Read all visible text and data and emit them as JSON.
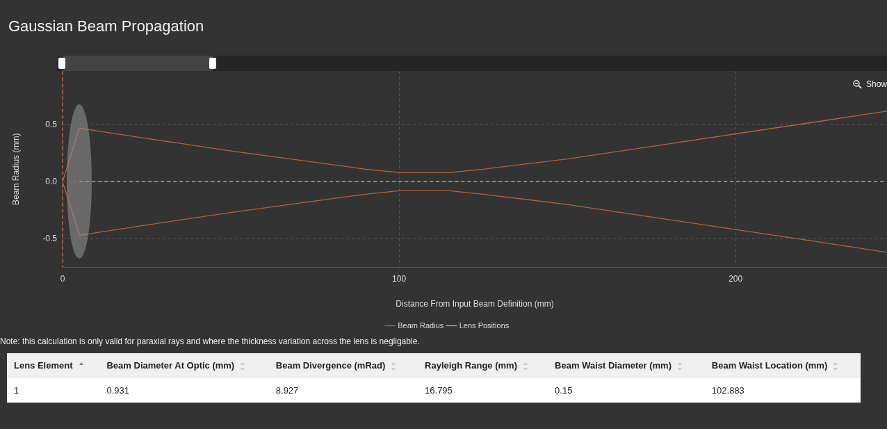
{
  "chart_data": {
    "type": "line",
    "title": "Gaussian Beam Propagation",
    "xlabel": "Distance From Input Beam Definition (mm)",
    "ylabel": "Beam Radius (mm)",
    "xlim": [
      0,
      245
    ],
    "xticks": [
      0,
      100,
      200
    ],
    "ylim": [
      -0.75,
      0.97
    ],
    "yticks": [
      {
        "value": -0.5,
        "label": "-0.5"
      },
      {
        "value": 0,
        "label": "0.0"
      },
      {
        "value": 0.5,
        "label": "0.5"
      }
    ],
    "grid": true,
    "legend": "bottom",
    "marker": "none",
    "series": [
      {
        "name": "Beam Radius",
        "color": "#b8613c",
        "x": [
          0,
          5,
          25,
          50,
          75,
          90,
          100,
          108,
          115,
          125,
          150,
          175,
          200,
          225,
          245
        ],
        "values": [
          0,
          0.47,
          0.38,
          0.27,
          0.17,
          0.11,
          0.08,
          0.08,
          0.08,
          0.11,
          0.2,
          0.31,
          0.42,
          0.53,
          0.62
        ]
      },
      {
        "color": "#b8613c",
        "x": [
          0,
          5,
          25,
          50,
          75,
          90,
          100,
          108,
          115,
          125,
          150,
          175,
          200,
          225,
          245
        ],
        "values": [
          0,
          -0.47,
          -0.38,
          -0.27,
          -0.17,
          -0.11,
          -0.08,
          -0.08,
          -0.08,
          -0.11,
          -0.2,
          -0.31,
          -0.42,
          -0.53,
          -0.62
        ]
      },
      {
        "name": "Lens Positions",
        "color": "#a9b0d8",
        "line_style": "dashed",
        "x": [
          5,
          245
        ],
        "values": [
          0,
          0
        ]
      }
    ],
    "ref_lines": [
      {
        "axis": "x",
        "value": 0,
        "color": "#c0643c",
        "line_style": "dashed"
      }
    ],
    "annotations": [
      "Note: this calculation is only valid for paraxial rays and where the thickness variation across the lens is negligable.",
      "Show",
      "Lens Element",
      "Beam Diameter At Optic (mm)",
      "Beam Divergence (mRad)",
      "Rayleigh Range (mm)",
      "Beam Waist Diameter (mm)",
      "Beam Waist Location (mm)",
      "1",
      "0.931",
      "8.927",
      "16.795",
      "0.15",
      "102.883"
    ]
  }
}
